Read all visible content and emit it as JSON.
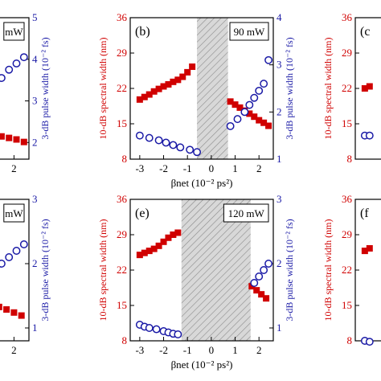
{
  "chart_data": [
    {
      "type": "scatter",
      "panel_label": "",
      "power_label": "mW",
      "x_ticks": [
        "2"
      ],
      "x_range": [
        -3.4,
        2.6
      ],
      "y2_label": "3-dB pulse width (10⁻² fs)",
      "y2_ticks": [
        "2",
        "3",
        "4",
        "5"
      ],
      "y2lim": [
        1.6,
        5
      ],
      "series": [
        {
          "axis": "left",
          "marker": "filled-square",
          "x": [
            0.0,
            0.3,
            0.6,
            0.9,
            1.2,
            1.5,
            1.8,
            2.1,
            2.4
          ],
          "y": [
            15.5,
            14.8,
            14.0,
            13.4,
            12.9,
            12.5,
            12.2,
            11.9,
            11.4
          ]
        },
        {
          "axis": "right",
          "marker": "open-circle",
          "x": [
            0.3,
            0.6,
            0.9,
            1.2,
            1.5,
            1.8,
            2.1,
            2.4
          ],
          "y": [
            2.55,
            2.75,
            3.0,
            3.25,
            3.55,
            3.75,
            3.9,
            4.05
          ]
        }
      ]
    },
    {
      "type": "scatter",
      "panel_label": "(b)",
      "power_label": "90 mW",
      "x_ticks": [
        "-3",
        "-2",
        "-1",
        "0",
        "1",
        "2"
      ],
      "xlim": [
        -3.4,
        2.6
      ],
      "xlabel": "βnet (10⁻² ps²)",
      "ylabel": "10-dB spectral width (nm)",
      "y_ticks": [
        "8",
        "15",
        "22",
        "29",
        "36"
      ],
      "ylim": [
        8,
        36
      ],
      "y2_label": "3-dB pulse width (10⁻² fs)",
      "y2_ticks": [
        "1",
        "2",
        "3",
        "4"
      ],
      "y2lim": [
        1,
        4
      ],
      "shaded_region": [
        -0.6,
        0.7
      ],
      "series": [
        {
          "axis": "left",
          "marker": "filled-square",
          "x": [
            -3.0,
            -2.8,
            -2.6,
            -2.4,
            -2.2,
            -2.0,
            -1.8,
            -1.6,
            -1.4,
            -1.2,
            -1.0,
            -0.8
          ],
          "y": [
            19.8,
            20.3,
            20.8,
            21.4,
            21.9,
            22.4,
            22.8,
            23.3,
            23.7,
            24.3,
            25.2,
            26.3
          ]
        },
        {
          "axis": "left",
          "marker": "filled-square",
          "x": [
            0.8,
            1.0,
            1.2,
            1.4,
            1.6,
            1.8,
            2.0,
            2.2,
            2.4
          ],
          "y": [
            19.4,
            18.8,
            18.2,
            17.6,
            17.0,
            16.4,
            15.7,
            15.2,
            14.6
          ]
        },
        {
          "axis": "right",
          "marker": "open-circle",
          "x": [
            -3.0,
            -2.6,
            -2.2,
            -1.9,
            -1.6,
            -1.3,
            -0.9,
            -0.6
          ],
          "y": [
            1.5,
            1.45,
            1.4,
            1.35,
            1.3,
            1.25,
            1.2,
            1.15
          ]
        },
        {
          "axis": "right",
          "marker": "open-circle",
          "x": [
            0.8,
            1.1,
            1.4,
            1.6,
            1.8,
            2.0,
            2.2,
            2.4
          ],
          "y": [
            1.7,
            1.85,
            2.0,
            2.15,
            2.3,
            2.45,
            2.6,
            3.1
          ]
        }
      ]
    },
    {
      "type": "scatter",
      "panel_label": "(c",
      "ylabel": "10-dB spectral width (nm)",
      "y_ticks": [
        "8",
        "15",
        "22",
        "29",
        "36"
      ],
      "ylim": [
        8,
        36
      ],
      "series": [
        {
          "axis": "left",
          "marker": "filled-square",
          "x": [
            -3.0,
            -2.8
          ],
          "y": [
            22.0,
            22.4
          ]
        },
        {
          "axis": "right",
          "marker": "open-circle",
          "x": [
            -3.0,
            -2.8
          ],
          "y": [
            1.5,
            1.5
          ]
        }
      ]
    },
    {
      "type": "scatter",
      "panel_label": "",
      "power_label": "mW",
      "x_ticks": [
        "2"
      ],
      "x_range": [
        -3.4,
        2.6
      ],
      "y2_label": "3-dB pulse width (10⁻² fs)",
      "y2_ticks": [
        "1",
        "2",
        "3"
      ],
      "y2lim": [
        0.8,
        3
      ],
      "series": [
        {
          "axis": "left",
          "marker": "filled-square",
          "x": [
            0.5,
            0.8,
            1.1,
            1.4,
            1.7,
            2.0,
            2.3
          ],
          "y": [
            16.0,
            15.6,
            15.2,
            14.7,
            14.2,
            13.6,
            13.0
          ]
        },
        {
          "axis": "right",
          "marker": "open-circle",
          "x": [
            0.6,
            0.9,
            1.2,
            1.5,
            1.8,
            2.1,
            2.4
          ],
          "y": [
            1.75,
            1.8,
            1.9,
            2.0,
            2.1,
            2.2,
            2.3
          ]
        }
      ]
    },
    {
      "type": "scatter",
      "panel_label": "(e)",
      "power_label": "120 mW",
      "x_ticks": [
        "-3",
        "-2",
        "-1",
        "0",
        "1",
        "2"
      ],
      "xlim": [
        -3.4,
        2.6
      ],
      "xlabel": "βnet (10⁻² ps²)",
      "ylabel": "10-dB spectral width (nm)",
      "y_ticks": [
        "8",
        "15",
        "22",
        "29",
        "36"
      ],
      "ylim": [
        8,
        36
      ],
      "y2_label": "3-dB pulse width (10⁻² fs)",
      "y2_ticks": [
        "1",
        "2",
        "3"
      ],
      "y2lim": [
        0.8,
        3
      ],
      "shaded_region": [
        -1.25,
        1.65
      ],
      "series": [
        {
          "axis": "left",
          "marker": "filled-square",
          "x": [
            -3.0,
            -2.8,
            -2.6,
            -2.4,
            -2.2,
            -2.0,
            -1.8,
            -1.6,
            -1.4
          ],
          "y": [
            25.0,
            25.4,
            25.8,
            26.2,
            26.8,
            27.6,
            28.4,
            29.0,
            29.4
          ]
        },
        {
          "axis": "left",
          "marker": "filled-square",
          "x": [
            1.7,
            1.9,
            2.1,
            2.3
          ],
          "y": [
            18.8,
            18.0,
            17.2,
            16.4
          ]
        },
        {
          "axis": "right",
          "marker": "open-circle",
          "x": [
            -3.0,
            -2.8,
            -2.6,
            -2.3,
            -2.0,
            -1.8,
            -1.6,
            -1.4
          ],
          "y": [
            1.05,
            1.02,
            1.0,
            0.98,
            0.95,
            0.93,
            0.91,
            0.9
          ]
        },
        {
          "axis": "right",
          "marker": "open-circle",
          "x": [
            1.8,
            2.0,
            2.2,
            2.4
          ],
          "y": [
            1.7,
            1.8,
            1.9,
            2.0
          ]
        }
      ]
    },
    {
      "type": "scatter",
      "panel_label": "(f",
      "ylabel": "10-dB spectral width (nm)",
      "y_ticks": [
        "8",
        "15",
        "22",
        "29",
        "36"
      ],
      "ylim": [
        8,
        36
      ],
      "series": [
        {
          "axis": "left",
          "marker": "filled-square",
          "x": [
            -3.0,
            -2.8
          ],
          "y": [
            25.8,
            26.3
          ]
        },
        {
          "axis": "right",
          "marker": "open-circle",
          "x": [
            -3.0,
            -2.8
          ],
          "y": [
            1.0,
            0.98
          ]
        }
      ]
    }
  ]
}
